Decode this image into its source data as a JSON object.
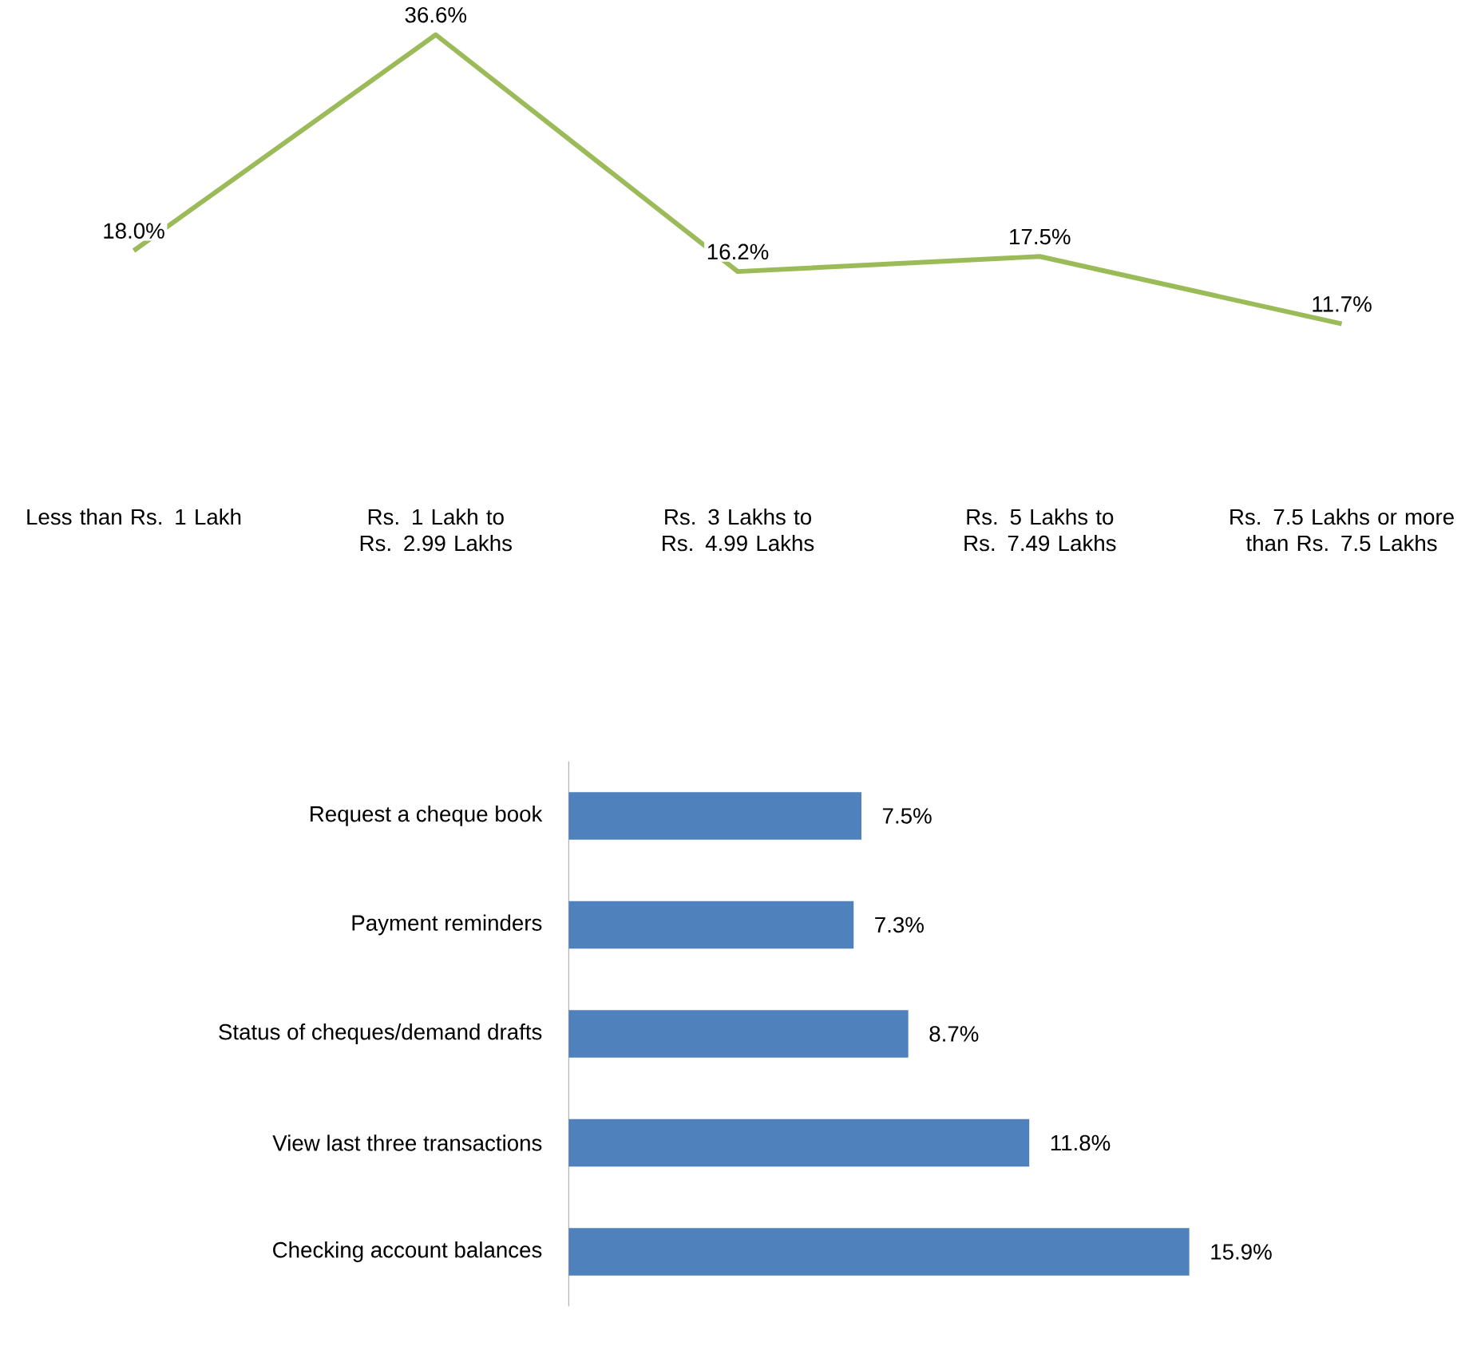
{
  "chart_data": [
    {
      "type": "line",
      "categories": [
        "Less than Rs. 1 Lakh",
        "Rs. 1 Lakh to Rs. 2.99 Lakhs",
        "Rs. 3 Lakhs to Rs. 4.99 Lakhs",
        "Rs. 5 Lakhs to Rs. 7.49 Lakhs",
        "Rs. 7.5 Lakhs or more than Rs. 7.5 Lakhs"
      ],
      "values": [
        18.0,
        36.6,
        16.2,
        17.5,
        11.7
      ],
      "value_labels": [
        "18.0%",
        "36.6%",
        "16.2%",
        "17.5%",
        "11.7%"
      ],
      "color": "#9bbb59"
    },
    {
      "type": "bar",
      "orientation": "horizontal",
      "categories": [
        "Request a cheque book",
        "Payment reminders",
        "Status of cheques/demand drafts",
        "View last three transactions",
        "Checking account balances"
      ],
      "values": [
        7.5,
        7.3,
        8.7,
        11.8,
        15.9
      ],
      "value_labels": [
        "7.5%",
        "7.3%",
        "8.7%",
        "11.8%",
        "15.9%"
      ],
      "color": "#4f81bd"
    }
  ]
}
